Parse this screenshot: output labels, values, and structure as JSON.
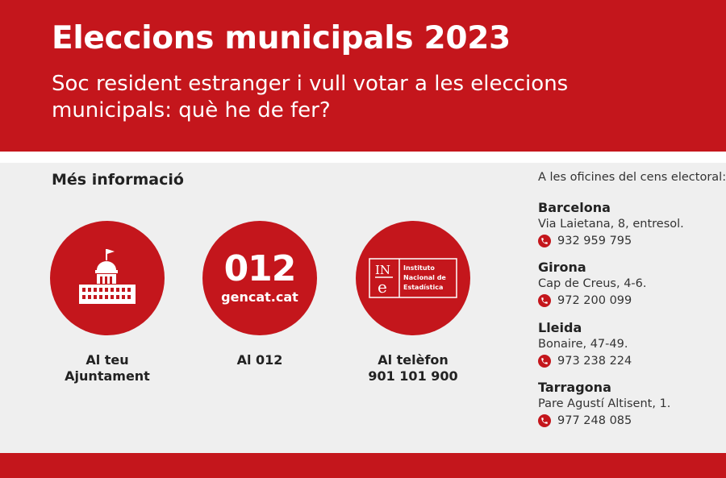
{
  "header": {
    "title": "Eleccions municipals 2023",
    "subtitle": "Soc resident estranger i vull votar a les eleccions municipals: què he de fer?"
  },
  "main": {
    "heading": "Més informació",
    "options": [
      {
        "icon": "town-hall-icon",
        "caption_lines": [
          "Al teu",
          "Ajuntament"
        ]
      },
      {
        "icon": "gencat-012-logo",
        "logo_big": "012",
        "logo_small": "gencat.cat",
        "caption_lines": [
          "Al 012"
        ]
      },
      {
        "icon": "ine-logo",
        "logo_letters": "INe",
        "logo_text": [
          "Instituto",
          "Nacional de",
          "Estadística"
        ],
        "caption_lines": [
          "Al telèfon",
          "901 101 900"
        ]
      }
    ]
  },
  "offices": {
    "intro": "A les oficines del cens electoral:",
    "items": [
      {
        "city": "Barcelona",
        "address": "Via Laietana, 8, entresol.",
        "phone": "932 959 795"
      },
      {
        "city": "Girona",
        "address": "Cap de Creus, 4-6.",
        "phone": "972 200 099"
      },
      {
        "city": "Lleida",
        "address": "Bonaire, 47-49.",
        "phone": "973 238 224"
      },
      {
        "city": "Tarragona",
        "address": "Pare Agustí Altisent, 1.",
        "phone": "977 248 085"
      }
    ]
  },
  "colors": {
    "brand_red": "#c4161c",
    "background": "#efefef",
    "text": "#222222"
  }
}
